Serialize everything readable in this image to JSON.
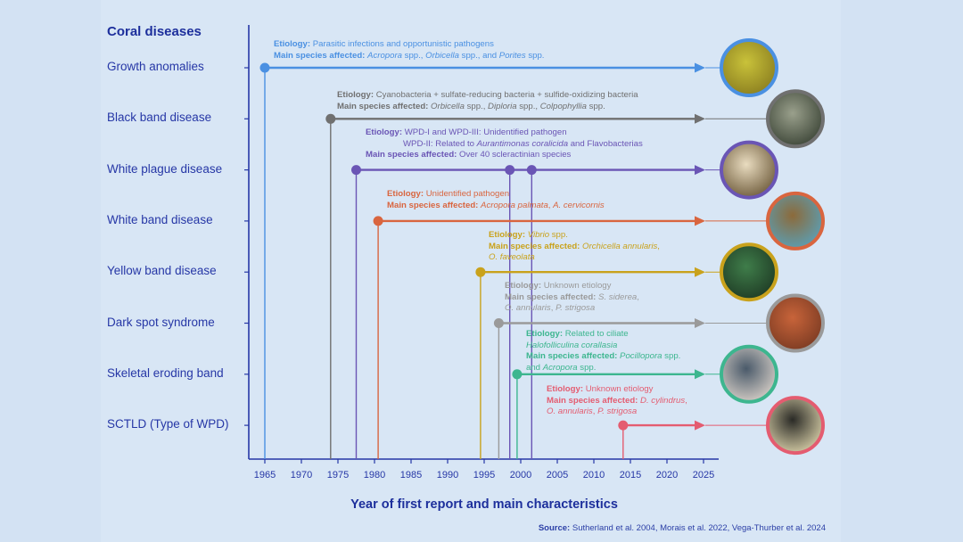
{
  "title": "Coral diseases",
  "chart_data": {
    "type": "timeline",
    "xlabel": "Year of first report and main characteristics",
    "xlim": [
      1965,
      2026
    ],
    "xticks": [
      1965,
      1970,
      1975,
      1980,
      1985,
      1990,
      1995,
      2000,
      2005,
      2010,
      2015,
      2020,
      2025
    ],
    "diseases": [
      {
        "name": "Growth anomalies",
        "years": [
          1965
        ],
        "end": 2025,
        "color": "#4a90e2",
        "etiology": "Parasitic infections and opportunistic pathogens",
        "species": "Acropora spp., Orbicella spp., and Porites spp."
      },
      {
        "name": "Black band disease",
        "years": [
          1974
        ],
        "end": 2025,
        "color": "#707070",
        "etiology": "Cyanobacteria + sulfate-reducing bacteria + sulfide-oxidizing bacteria",
        "species": "Orbicella spp., Diploria spp., Colpophyllia spp."
      },
      {
        "name": "White plague disease",
        "years": [
          1977.5,
          1998.5,
          2001.5
        ],
        "end": 2025,
        "color": "#6a55b5",
        "etiology": "WPD-I and WPD-III: Unidentified pathogen",
        "etiology2": "WPD-II: Related to Aurantimonas coralicida and Flavobacterias",
        "species": "Over 40 scleractinian species"
      },
      {
        "name": "White band disease",
        "years": [
          1980.5
        ],
        "end": 2025,
        "color": "#d9653f",
        "etiology": "Unidentified pathogen",
        "species": "Acropora palmata, A. cervicornis"
      },
      {
        "name": "Yellow band disease",
        "years": [
          1994.5
        ],
        "end": 2025,
        "color": "#c9a21c",
        "etiology": "Vibrio spp.",
        "species": "Orchicella annularis,",
        "species2": "O. faveolata"
      },
      {
        "name": "Dark spot syndrome",
        "years": [
          1997
        ],
        "end": 2025,
        "color": "#9a9a9a",
        "etiology": "Unknown etiology",
        "species": "S. siderea,",
        "species2": "O. annularis, P. strigosa"
      },
      {
        "name": "Skeletal eroding band",
        "years": [
          1999.5
        ],
        "end": 2025,
        "color": "#3db68f",
        "etiology": "Related to ciliate",
        "etiology2": "Halofolliculina corallasia",
        "species": "Pocillopora spp.",
        "species2": "and Acropora spp."
      },
      {
        "name": "SCTLD (Type of WPD)",
        "years": [
          2014
        ],
        "end": 2025,
        "color": "#e45c70",
        "etiology": "Unknown etiology",
        "species": "D. cylindrus,",
        "species2": "O. annularis, P. strigosa"
      }
    ]
  },
  "labels": {
    "etiology": "Etiology:",
    "species": "Main species affected:"
  },
  "source": {
    "label": "Source:",
    "text": "Sutherland et al. 2004, Morais et al. 2022, Vega-Thurber et al. 2024"
  }
}
